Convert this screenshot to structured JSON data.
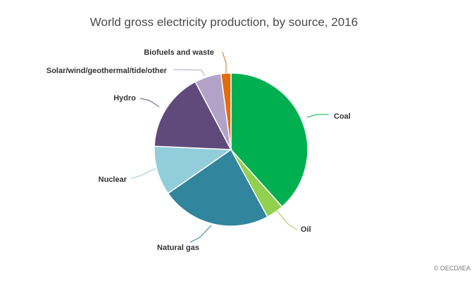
{
  "chart_data": {
    "type": "pie",
    "title": "World gross electricity production, by source, 2016",
    "slices": [
      {
        "label": "Coal",
        "value": 38.4,
        "color": "#00b050"
      },
      {
        "label": "Oil",
        "value": 3.7,
        "color": "#92d050"
      },
      {
        "label": "Natural gas",
        "value": 23.2,
        "color": "#31859c"
      },
      {
        "label": "Nuclear",
        "value": 10.4,
        "color": "#92cddc"
      },
      {
        "label": "Hydro",
        "value": 16.6,
        "color": "#604a7b"
      },
      {
        "label": "Solar/wind/geothermal/tide/other",
        "value": 5.6,
        "color": "#b3a2c7"
      },
      {
        "label": "Biofuels and waste",
        "value": 2.1,
        "color": "#e46c0a"
      }
    ],
    "legend": "none"
  },
  "credit": "© OECD/IEA"
}
